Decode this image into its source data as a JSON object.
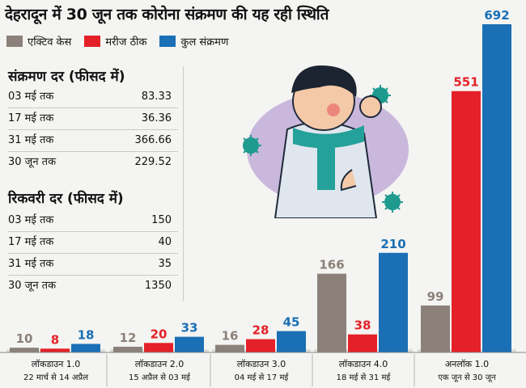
{
  "title": "देहरादून में 30 जून तक कोरोना संक्रमण की यह रही स्थिति",
  "legend": [
    {
      "label": "एक्टिव केस",
      "color": "#8b817a"
    },
    {
      "label": "मरीज ठीक",
      "color": "#e42129"
    },
    {
      "label": "कुल संक्रमण",
      "color": "#1a6fb5"
    }
  ],
  "infection_rate": {
    "title": "संक्रमण दर (फीसद में)",
    "rows": [
      {
        "label": "03 मई तक",
        "value": "83.33"
      },
      {
        "label": "17 मई तक",
        "value": "36.36"
      },
      {
        "label": "31 मई तक",
        "value": "366.66"
      },
      {
        "label": "30 जून तक",
        "value": "229.52"
      }
    ]
  },
  "recovery_rate": {
    "title": "रिकवरी दर (फीसद में)",
    "rows": [
      {
        "label": "03 मई तक",
        "value": "150"
      },
      {
        "label": "17 मई तक",
        "value": "40"
      },
      {
        "label": "31 मई तक",
        "value": "35"
      },
      {
        "label": "30 जून तक",
        "value": "1350"
      }
    ]
  },
  "chart_data": {
    "type": "bar",
    "categories": [
      {
        "name": "लॉकडाउन 1.0",
        "period": "22 मार्च से 14 अप्रैल"
      },
      {
        "name": "लॉकडाउन 2.0",
        "period": "15 अप्रैल से 03 मई"
      },
      {
        "name": "लॉकडाउन 3.0",
        "period": "04 मई से 17 मई"
      },
      {
        "name": "लॉकडाउन 4.0",
        "period": "18 मई से 31 मई"
      },
      {
        "name": "अनलॉक 1.0",
        "period": "एक जून से 30 जून"
      }
    ],
    "series": [
      {
        "name": "एक्टिव केस",
        "color": "#8b817a",
        "values": [
          10,
          12,
          16,
          166,
          99
        ]
      },
      {
        "name": "मरीज ठीक",
        "color": "#e42129",
        "values": [
          8,
          20,
          28,
          38,
          551
        ]
      },
      {
        "name": "कुल संक्रमण",
        "color": "#1a6fb5",
        "values": [
          18,
          33,
          45,
          210,
          692
        ]
      }
    ],
    "ylim": [
      0,
      692
    ]
  }
}
